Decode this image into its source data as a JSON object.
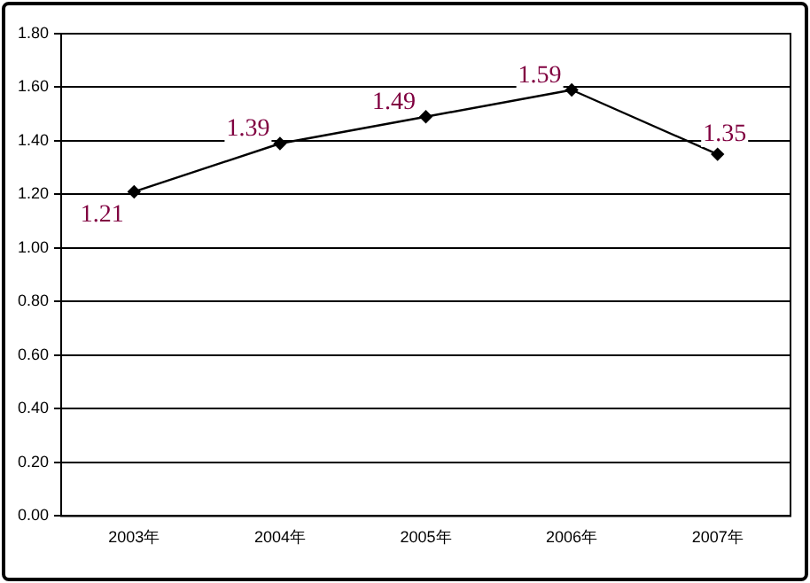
{
  "chart_data": {
    "type": "line",
    "categories": [
      "2003年",
      "2004年",
      "2005年",
      "2006年",
      "2007年"
    ],
    "values": [
      1.21,
      1.39,
      1.49,
      1.59,
      1.35
    ],
    "color": "#000000",
    "ylim": [
      0,
      1.8
    ],
    "yticks": [
      {
        "value": 0,
        "label": "0.00"
      },
      {
        "value": 0.2,
        "label": "0.20"
      },
      {
        "value": 0.4,
        "label": "0.40"
      },
      {
        "value": 0.6,
        "label": "0.60"
      },
      {
        "value": 0.8,
        "label": "0.80"
      },
      {
        "value": 1,
        "label": "1.00"
      },
      {
        "value": 1.2,
        "label": "1.20"
      },
      {
        "value": 1.4,
        "label": "1.40"
      },
      {
        "value": 1.6,
        "label": "1.60"
      },
      {
        "value": 1.8,
        "label": "1.80"
      }
    ],
    "grid": "y",
    "legend": false,
    "marker": "diamond",
    "line_style": "solid",
    "data_labels": true
  }
}
